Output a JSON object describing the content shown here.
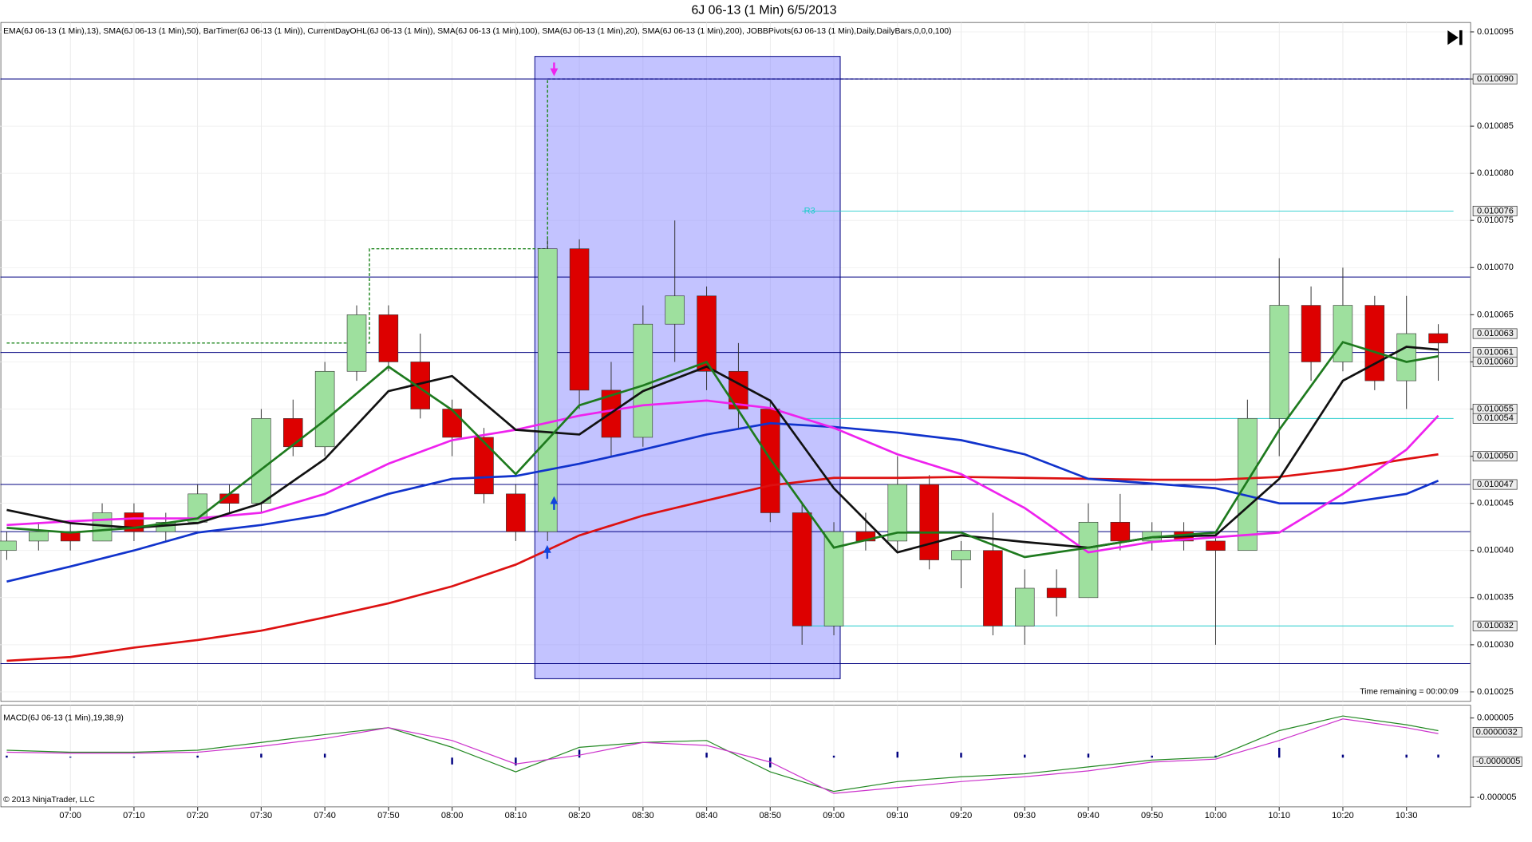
{
  "title": "6J 06-13 (1 Min)  6/5/2013",
  "footer": "© 2013 NinjaTrader, LLC",
  "chart_data": [
    {
      "type": "candlestick",
      "indicator_label": "EMA(6J 06-13 (1 Min),13), SMA(6J 06-13 (1 Min),50), BarTimer(6J 06-13 (1 Min)), CurrentDayOHL(6J 06-13 (1 Min)), SMA(6J 06-13 (1 Min),100), SMA(6J 06-13 (1 Min),20), SMA(6J 06-13 (1 Min),200), JOBBPivots(6J 06-13 (1 Min),Daily,DailyBars,0,0,0,100)",
      "annotation": "Time remaining = 00:00:09",
      "xlim": [
        "06:49",
        "10:40"
      ],
      "ylim": [
        0.010024,
        0.010096
      ],
      "xticks": [
        "07:00",
        "07:10",
        "07:20",
        "07:30",
        "07:40",
        "07:50",
        "08:00",
        "08:10",
        "08:20",
        "08:30",
        "08:40",
        "08:50",
        "09:00",
        "09:10",
        "09:20",
        "09:30",
        "09:40",
        "09:50",
        "10:00",
        "10:10",
        "10:20",
        "10:30"
      ],
      "yticks": [
        {
          "value": 0.010025,
          "label": "0.010025"
        },
        {
          "value": 0.01003,
          "label": "0.010030"
        },
        {
          "value": 0.010035,
          "label": "0.010035"
        },
        {
          "value": 0.01004,
          "label": "0.010040"
        },
        {
          "value": 0.010045,
          "label": "0.010045"
        },
        {
          "value": 0.01005,
          "label": "0.010050"
        },
        {
          "value": 0.010055,
          "label": "0.010055"
        },
        {
          "value": 0.01006,
          "label": "0.010060"
        },
        {
          "value": 0.010065,
          "label": "0.010065"
        },
        {
          "value": 0.01007,
          "label": "0.010070"
        },
        {
          "value": 0.010075,
          "label": "0.010075"
        },
        {
          "value": 0.01008,
          "label": "0.010080"
        },
        {
          "value": 0.010085,
          "label": "0.010085"
        },
        {
          "value": 0.01009,
          "label": "0.010090"
        },
        {
          "value": 0.010095,
          "label": "0.010095"
        }
      ],
      "grid": true,
      "colors": {
        "up": "#9ee09e",
        "down": "#dd0000",
        "outline": "#333333"
      },
      "x": [
        "06:50",
        "06:55",
        "07:00",
        "07:05",
        "07:10",
        "07:15",
        "07:20",
        "07:25",
        "07:30",
        "07:35",
        "07:40",
        "07:45",
        "07:50",
        "07:55",
        "08:00",
        "08:05",
        "08:10",
        "08:15",
        "08:20",
        "08:25",
        "08:30",
        "08:35",
        "08:40",
        "08:45",
        "08:50",
        "08:55",
        "09:00",
        "09:05",
        "09:10",
        "09:15",
        "09:20",
        "09:25",
        "09:30",
        "09:35",
        "09:40",
        "09:45",
        "09:50",
        "09:55",
        "10:00",
        "10:05",
        "10:10",
        "10:15",
        "10:20",
        "10:25",
        "10:30",
        "10:35"
      ],
      "open": [
        0.01004,
        0.010041,
        0.010042,
        0.010041,
        0.010044,
        0.010042,
        0.010043,
        0.010046,
        0.010045,
        0.010054,
        0.010051,
        0.010059,
        0.010065,
        0.01006,
        0.010055,
        0.010052,
        0.010046,
        0.010042,
        0.010072,
        0.010057,
        0.010052,
        0.010064,
        0.010067,
        0.010059,
        0.010055,
        0.010044,
        0.010032,
        0.010042,
        0.010041,
        0.010047,
        0.010039,
        0.01004,
        0.010032,
        0.010036,
        0.010035,
        0.010043,
        0.010041,
        0.010042,
        0.010041,
        0.01004,
        0.010054,
        0.010066,
        0.01006,
        0.010066,
        0.010058,
        0.010063
      ],
      "high": [
        0.010042,
        0.010043,
        0.010043,
        0.010045,
        0.010045,
        0.010044,
        0.010047,
        0.010047,
        0.010055,
        0.010056,
        0.01006,
        0.010066,
        0.010066,
        0.010063,
        0.010056,
        0.010053,
        0.010047,
        0.010073,
        0.010073,
        0.01006,
        0.010066,
        0.010075,
        0.010068,
        0.010062,
        0.010056,
        0.010045,
        0.010043,
        0.010044,
        0.01005,
        0.010048,
        0.010041,
        0.010044,
        0.010038,
        0.010038,
        0.010045,
        0.010046,
        0.010043,
        0.010043,
        0.010042,
        0.010056,
        0.010071,
        0.010068,
        0.01007,
        0.010067,
        0.010067,
        0.010064
      ],
      "low": [
        0.010039,
        0.01004,
        0.01004,
        0.010041,
        0.010041,
        0.010041,
        0.010043,
        0.010044,
        0.010044,
        0.01005,
        0.01005,
        0.010058,
        0.010059,
        0.010054,
        0.01005,
        0.010045,
        0.010041,
        0.010041,
        0.010055,
        0.01005,
        0.010051,
        0.01006,
        0.010057,
        0.010053,
        0.010043,
        0.01003,
        0.010031,
        0.01004,
        0.01004,
        0.010038,
        0.010036,
        0.010031,
        0.01003,
        0.010033,
        0.010035,
        0.01004,
        0.01004,
        0.01004,
        0.01003,
        0.01004,
        0.01005,
        0.010058,
        0.010059,
        0.010057,
        0.010055,
        0.010058
      ],
      "close": [
        0.010041,
        0.010042,
        0.010041,
        0.010044,
        0.010042,
        0.010043,
        0.010046,
        0.010045,
        0.010054,
        0.010051,
        0.010059,
        0.010065,
        0.01006,
        0.010055,
        0.010052,
        0.010046,
        0.010042,
        0.010072,
        0.010057,
        0.010052,
        0.010064,
        0.010067,
        0.010059,
        0.010055,
        0.010044,
        0.010032,
        0.010042,
        0.010041,
        0.010047,
        0.010039,
        0.01004,
        0.010032,
        0.010036,
        0.010035,
        0.010043,
        0.010041,
        0.010042,
        0.010041,
        0.01004,
        0.010054,
        0.010066,
        0.01006,
        0.010066,
        0.010058,
        0.010063,
        0.010062
      ],
      "lines": {
        "x": [
          "06:50",
          "07:00",
          "07:10",
          "07:20",
          "07:30",
          "07:40",
          "07:50",
          "08:00",
          "08:10",
          "08:20",
          "08:30",
          "08:40",
          "08:50",
          "09:00",
          "09:10",
          "09:20",
          "09:30",
          "09:40",
          "09:50",
          "10:00",
          "10:10",
          "10:20",
          "10:30",
          "10:35"
        ],
        "series": [
          {
            "color": "#dd1111",
            "values": [
              0.0100283,
              0.0100287,
              0.0100297,
              0.0100305,
              0.0100315,
              0.0100329,
              0.0100344,
              0.0100362,
              0.0100385,
              0.0100416,
              0.0100437,
              0.0100453,
              0.0100469,
              0.0100477,
              0.0100477,
              0.0100478,
              0.0100477,
              0.0100476,
              0.0100475,
              0.0100475,
              0.0100478,
              0.0100486,
              0.0100497,
              0.0100502
            ]
          },
          {
            "color": "#1133cc",
            "values": [
              0.0100367,
              0.0100383,
              0.01004,
              0.0100419,
              0.0100427,
              0.0100438,
              0.010046,
              0.0100476,
              0.0100479,
              0.0100492,
              0.0100507,
              0.0100523,
              0.0100535,
              0.0100531,
              0.0100525,
              0.0100517,
              0.0100502,
              0.0100476,
              0.0100471,
              0.0100466,
              0.010045,
              0.010045,
              0.010046,
              0.0100474
            ]
          },
          {
            "color": "#ee22ee",
            "values": [
              0.0100427,
              0.0100431,
              0.0100434,
              0.0100434,
              0.010044,
              0.010046,
              0.0100492,
              0.0100517,
              0.0100528,
              0.0100543,
              0.0100554,
              0.0100559,
              0.0100551,
              0.010053,
              0.0100502,
              0.0100481,
              0.0100445,
              0.0100398,
              0.0100409,
              0.0100414,
              0.0100419,
              0.010046,
              0.0100507,
              0.0100543
            ]
          },
          {
            "color": "#111111",
            "values": [
              0.0100443,
              0.0100429,
              0.0100424,
              0.0100429,
              0.010045,
              0.0100497,
              0.0100569,
              0.0100585,
              0.0100528,
              0.0100523,
              0.0100569,
              0.0100595,
              0.0100559,
              0.0100466,
              0.0100398,
              0.0100416,
              0.0100409,
              0.0100403,
              0.0100414,
              0.0100416,
              0.0100476,
              0.010058,
              0.0100616,
              0.0100613
            ]
          },
          {
            "color": "#1e7a1e",
            "values": [
              0.0100424,
              0.0100419,
              0.0100424,
              0.0100434,
              0.0100486,
              0.0100538,
              0.0100595,
              0.0100549,
              0.0100481,
              0.0100554,
              0.0100575,
              0.01006,
              0.0100497,
              0.0100403,
              0.0100419,
              0.0100419,
              0.0100393,
              0.0100403,
              0.0100414,
              0.0100419,
              0.0100528,
              0.0100621,
              0.01006,
              0.0100606
            ]
          }
        ]
      },
      "hlines": {
        "color": "#000080",
        "values": [
          0.01009,
          0.010069,
          0.010061,
          0.010047,
          0.010042,
          0.010028
        ]
      },
      "pivots": {
        "color": "#22cccc",
        "start": "08:55",
        "levels": [
          {
            "value": 0.010076,
            "label": "R3"
          },
          {
            "value": 0.010054
          },
          {
            "value": 0.010032
          }
        ]
      },
      "ohl_line": {
        "color": "#228822",
        "x": [
          "06:50",
          "07:47",
          "07:47",
          "08:15",
          "08:15"
        ],
        "values": [
          0.010062,
          0.010062,
          0.010072,
          0.010072,
          0.01009
        ]
      },
      "highlight": {
        "x": [
          "08:13",
          "09:01"
        ],
        "ylim": [
          0.0100264,
          0.0100924
        ],
        "color": "#8888ff"
      },
      "price_markers": [
        {
          "value": 0.01009,
          "label": "0.010090"
        },
        {
          "value": 0.010076,
          "label": "0.010076"
        },
        {
          "value": 0.010063,
          "label": "0.010063"
        },
        {
          "value": 0.010061,
          "label": "0.010061"
        },
        {
          "value": 0.01006,
          "label": "0.010060"
        },
        {
          "value": 0.010055,
          "label": "0.010055"
        },
        {
          "value": 0.010054,
          "label": "0.010054"
        },
        {
          "value": 0.01005,
          "label": "0.010050"
        },
        {
          "value": 0.010047,
          "label": "0.010047"
        },
        {
          "value": 0.010032,
          "label": "0.010032"
        }
      ]
    },
    {
      "type": "macd",
      "indicator_label": "MACD(6J 06-13 (1 Min),19,38,9)",
      "xlim": [
        "06:49",
        "10:40"
      ],
      "ylim": [
        -6.2e-06,
        6.6e-06
      ],
      "yticks": [
        {
          "value": -5e-06,
          "label": "-0.000005"
        },
        {
          "value": 5e-06,
          "label": "0.000005"
        }
      ],
      "price_markers": [
        {
          "value": 3.2e-06,
          "label": "0.0000032"
        },
        {
          "value": -5e-07,
          "label": "-0.0000005"
        }
      ],
      "x": [
        "06:50",
        "07:00",
        "07:10",
        "07:20",
        "07:30",
        "07:40",
        "07:50",
        "08:00",
        "08:10",
        "08:20",
        "08:30",
        "08:40",
        "08:50",
        "09:00",
        "09:10",
        "09:20",
        "09:30",
        "09:40",
        "09:50",
        "10:00",
        "10:10",
        "10:20",
        "10:30",
        "10:35"
      ],
      "series": [
        {
          "color": "#228822",
          "values": [
            9.3e-07,
            6.8e-07,
            6.8e-07,
            9.3e-07,
            1.91e-06,
            2.9e-06,
            3.77e-06,
            1.3e-06,
            -1.79e-06,
            1.3e-06,
            1.91e-06,
            2.16e-06,
            -1.79e-06,
            -4.26e-06,
            -3.02e-06,
            -2.41e-06,
            -2.04e-06,
            -1.17e-06,
            -3.1e-07,
            6e-08,
            3.4e-06,
            5.25e-06,
            4.14e-06,
            3.4e-06
          ]
        },
        {
          "color": "#cc33cc",
          "values": [
            6.8e-07,
            5.6e-07,
            5.6e-07,
            6.8e-07,
            1.42e-06,
            2.41e-06,
            3.77e-06,
            2.16e-06,
            -8e-07,
            3.1e-07,
            1.91e-06,
            1.54e-06,
            -5.6e-07,
            -4.51e-06,
            -3.77e-06,
            -3.02e-06,
            -2.41e-06,
            -1.67e-06,
            -5.6e-07,
            -1.9e-07,
            2.16e-06,
            4.88e-06,
            3.77e-06,
            3.02e-06
          ]
        }
      ],
      "histogram": {
        "color": "#000080",
        "values": [
          2.5e-07,
          1.2e-07,
          1.2e-07,
          2.5e-07,
          4.9e-07,
          4.9e-07,
          0,
          -8.6e-07,
          -9.9e-07,
          9.9e-07,
          0,
          6.2e-07,
          -1.23e-06,
          2.5e-07,
          7.5e-07,
          6.1e-07,
          3.7e-07,
          5e-07,
          2.5e-07,
          2.5e-07,
          1.24e-06,
          3.7e-07,
          3.7e-07,
          3.8e-07
        ]
      }
    }
  ]
}
